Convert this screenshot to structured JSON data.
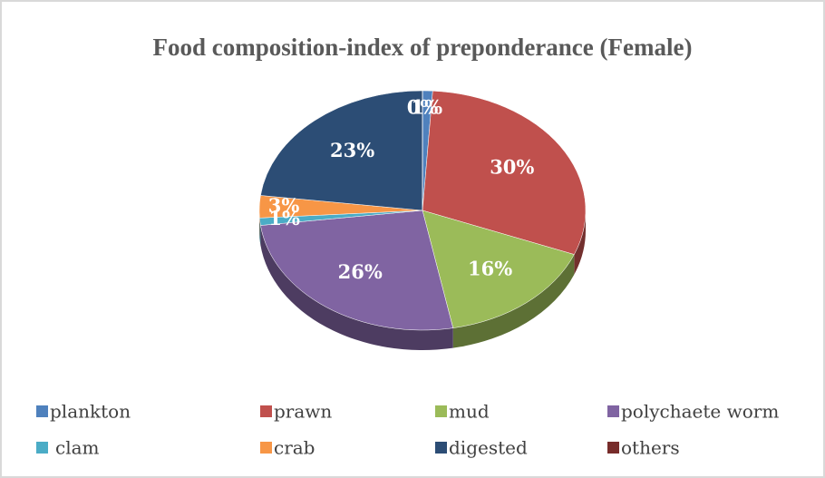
{
  "chart_data": {
    "type": "pie3d",
    "title": "Food composition-index of preponderance (Female)",
    "categories": [
      "plankton",
      "prawn",
      "mud",
      "polychaete worm",
      "clam",
      "crab",
      "digested",
      "others"
    ],
    "values": [
      1,
      30,
      16,
      26,
      1,
      3,
      23,
      0
    ],
    "value_labels": [
      "1%",
      "30%",
      "16%",
      "26%",
      "1%",
      "3%",
      "23%",
      "0%"
    ],
    "colors": [
      "#4f81bd",
      "#c0504d",
      "#9bbb59",
      "#8064a2",
      "#4bacc6",
      "#f79646",
      "#2c4d75",
      "#772c2a"
    ],
    "legend": "bottom"
  }
}
